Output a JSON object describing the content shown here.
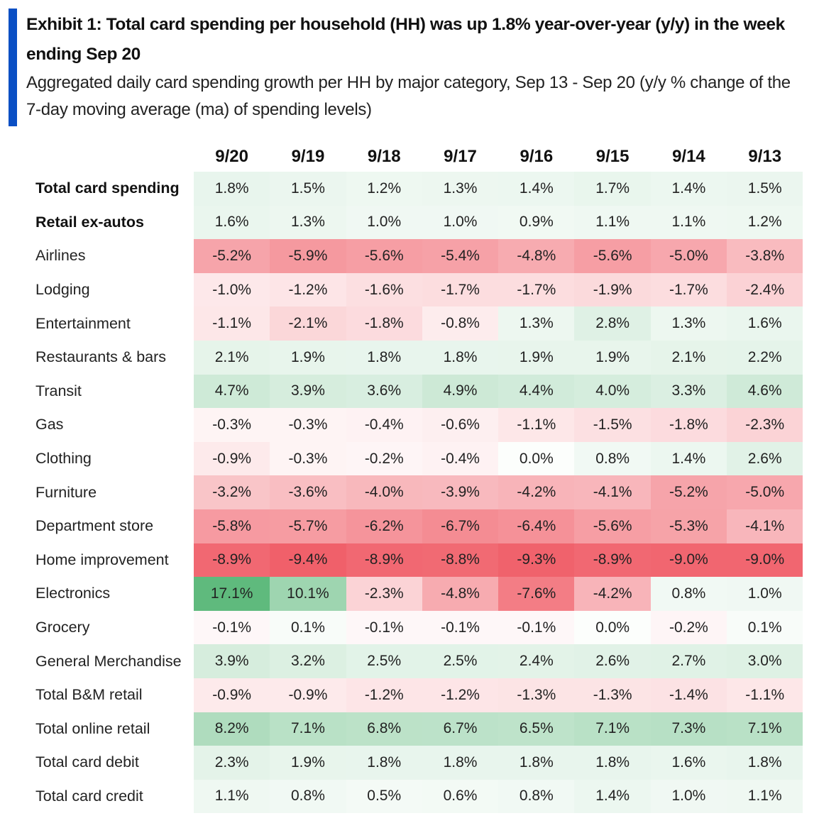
{
  "title": "Exhibit 1: Total card spending per household (HH) was up 1.8% year-over-year (y/y) in the week ending Sep 20",
  "subtitle": "Aggregated daily card spending growth per HH by major category, Sep 13 - Sep 20 (y/y % change of the 7-day moving average (ma) of spending levels)",
  "colors": {
    "accent": "#0a4fc4",
    "positive": "#5fba7d",
    "negative": "#f0606a",
    "neutral": "#ffffff"
  },
  "chart_data": {
    "type": "table",
    "columns": [
      "9/20",
      "9/19",
      "9/18",
      "9/17",
      "9/16",
      "9/15",
      "9/14",
      "9/13"
    ],
    "rows": [
      {
        "label": "Total card spending",
        "bold": true,
        "values": [
          1.8,
          1.5,
          1.2,
          1.3,
          1.4,
          1.7,
          1.4,
          1.5
        ]
      },
      {
        "label": "Retail ex-autos",
        "bold": true,
        "values": [
          1.6,
          1.3,
          1.0,
          1.0,
          0.9,
          1.1,
          1.1,
          1.2
        ]
      },
      {
        "label": "Airlines",
        "bold": false,
        "values": [
          -5.2,
          -5.9,
          -5.6,
          -5.4,
          -4.8,
          -5.6,
          -5.0,
          -3.8
        ]
      },
      {
        "label": "Lodging",
        "bold": false,
        "values": [
          -1.0,
          -1.2,
          -1.6,
          -1.7,
          -1.7,
          -1.9,
          -1.7,
          -2.4
        ]
      },
      {
        "label": "Entertainment",
        "bold": false,
        "values": [
          -1.1,
          -2.1,
          -1.8,
          -0.8,
          1.3,
          2.8,
          1.3,
          1.6
        ]
      },
      {
        "label": "Restaurants & bars",
        "bold": false,
        "values": [
          2.1,
          1.9,
          1.8,
          1.8,
          1.9,
          1.9,
          2.1,
          2.2
        ]
      },
      {
        "label": "Transit",
        "bold": false,
        "values": [
          4.7,
          3.9,
          3.6,
          4.9,
          4.4,
          4.0,
          3.3,
          4.6
        ]
      },
      {
        "label": "Gas",
        "bold": false,
        "values": [
          -0.3,
          -0.3,
          -0.4,
          -0.6,
          -1.1,
          -1.5,
          -1.8,
          -2.3
        ]
      },
      {
        "label": "Clothing",
        "bold": false,
        "values": [
          -0.9,
          -0.3,
          -0.2,
          -0.4,
          0.0,
          0.8,
          1.4,
          2.6
        ]
      },
      {
        "label": "Furniture",
        "bold": false,
        "values": [
          -3.2,
          -3.6,
          -4.0,
          -3.9,
          -4.2,
          -4.1,
          -5.2,
          -5.0
        ]
      },
      {
        "label": "Department store",
        "bold": false,
        "values": [
          -5.8,
          -5.7,
          -6.2,
          -6.7,
          -6.4,
          -5.6,
          -5.3,
          -4.1
        ]
      },
      {
        "label": "Home improvement",
        "bold": false,
        "values": [
          -8.9,
          -9.4,
          -8.9,
          -8.8,
          -9.3,
          -8.9,
          -9.0,
          -9.0
        ]
      },
      {
        "label": "Electronics",
        "bold": false,
        "values": [
          17.1,
          10.1,
          -2.3,
          -4.8,
          -7.6,
          -4.2,
          0.8,
          1.0
        ]
      },
      {
        "label": "Grocery",
        "bold": false,
        "values": [
          -0.1,
          0.1,
          -0.1,
          -0.1,
          -0.1,
          0.0,
          -0.2,
          0.1
        ]
      },
      {
        "label": "General Merchandise",
        "bold": false,
        "values": [
          3.9,
          3.2,
          2.5,
          2.5,
          2.4,
          2.6,
          2.7,
          3.0
        ]
      },
      {
        "label": "Total B&M retail",
        "bold": false,
        "values": [
          -0.9,
          -0.9,
          -1.2,
          -1.2,
          -1.3,
          -1.3,
          -1.4,
          -1.1
        ]
      },
      {
        "label": "Total online retail",
        "bold": false,
        "values": [
          8.2,
          7.1,
          6.8,
          6.7,
          6.5,
          7.1,
          7.3,
          7.1
        ]
      },
      {
        "label": "Total card debit",
        "bold": false,
        "values": [
          2.3,
          1.9,
          1.8,
          1.8,
          1.8,
          1.8,
          1.6,
          1.8
        ]
      },
      {
        "label": "Total card credit",
        "bold": false,
        "values": [
          1.1,
          0.8,
          0.5,
          0.6,
          0.8,
          1.4,
          1.0,
          1.1
        ]
      }
    ],
    "value_suffix": "%",
    "color_scale": {
      "negative_extreme": -9.4,
      "positive_extreme": 17.1
    }
  }
}
